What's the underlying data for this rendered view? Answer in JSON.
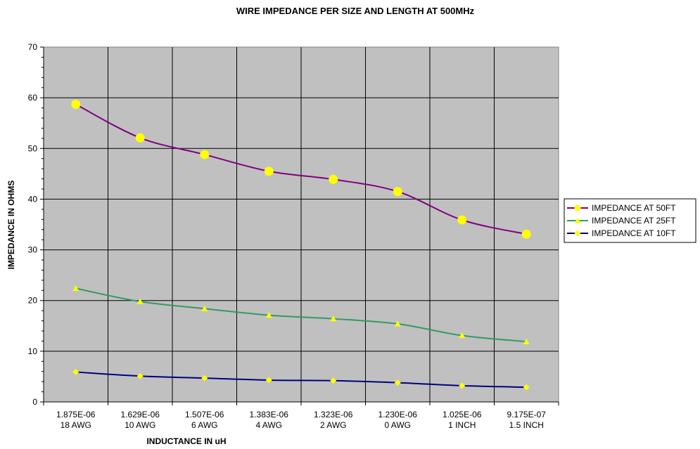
{
  "chart_data": {
    "type": "line",
    "title": "WIRE IMPEDANCE PER SIZE AND LENGTH AT 500MHz",
    "xlabel": "INDUCTANCE IN uH",
    "ylabel": "IMPEDANCE IN OHMS",
    "ylim": [
      0,
      70
    ],
    "y_ticks": [
      "0",
      "10",
      "20",
      "30",
      "40",
      "50",
      "60",
      "70"
    ],
    "categories": [
      {
        "line1": "1.875E-06",
        "line2": "18 AWG"
      },
      {
        "line1": "1.629E-06",
        "line2": "10 AWG"
      },
      {
        "line1": "1.507E-06",
        "line2": "6 AWG"
      },
      {
        "line1": "1.383E-06",
        "line2": "4 AWG"
      },
      {
        "line1": "1.323E-06",
        "line2": "2 AWG"
      },
      {
        "line1": "1.230E-06",
        "line2": "0 AWG"
      },
      {
        "line1": "1.025E-06",
        "line2": "1 INCH"
      },
      {
        "line1": "9.175E-07",
        "line2": "1.5 INCH"
      }
    ],
    "series": [
      {
        "name": "IMPEDANCE AT 50FT",
        "color": "#800080",
        "marker": "circle",
        "marker_color": "#ffff00",
        "values": [
          58.7,
          52.1,
          48.8,
          45.5,
          43.9,
          41.5,
          35.9,
          33.1
        ]
      },
      {
        "name": "IMPEDANCE AT 25FT",
        "color": "#339966",
        "marker": "triangle",
        "marker_color": "#ffff00",
        "values": [
          22.4,
          19.8,
          18.4,
          17.1,
          16.4,
          15.4,
          13.1,
          11.9
        ]
      },
      {
        "name": "IMPEDANCE AT 10FT",
        "color": "#000080",
        "marker": "diamond",
        "marker_color": "#ffff00",
        "values": [
          5.9,
          5.1,
          4.7,
          4.3,
          4.2,
          3.8,
          3.2,
          2.9
        ]
      }
    ],
    "grid": true,
    "plot_background": "#c0c0c0",
    "legend_position": "right"
  }
}
